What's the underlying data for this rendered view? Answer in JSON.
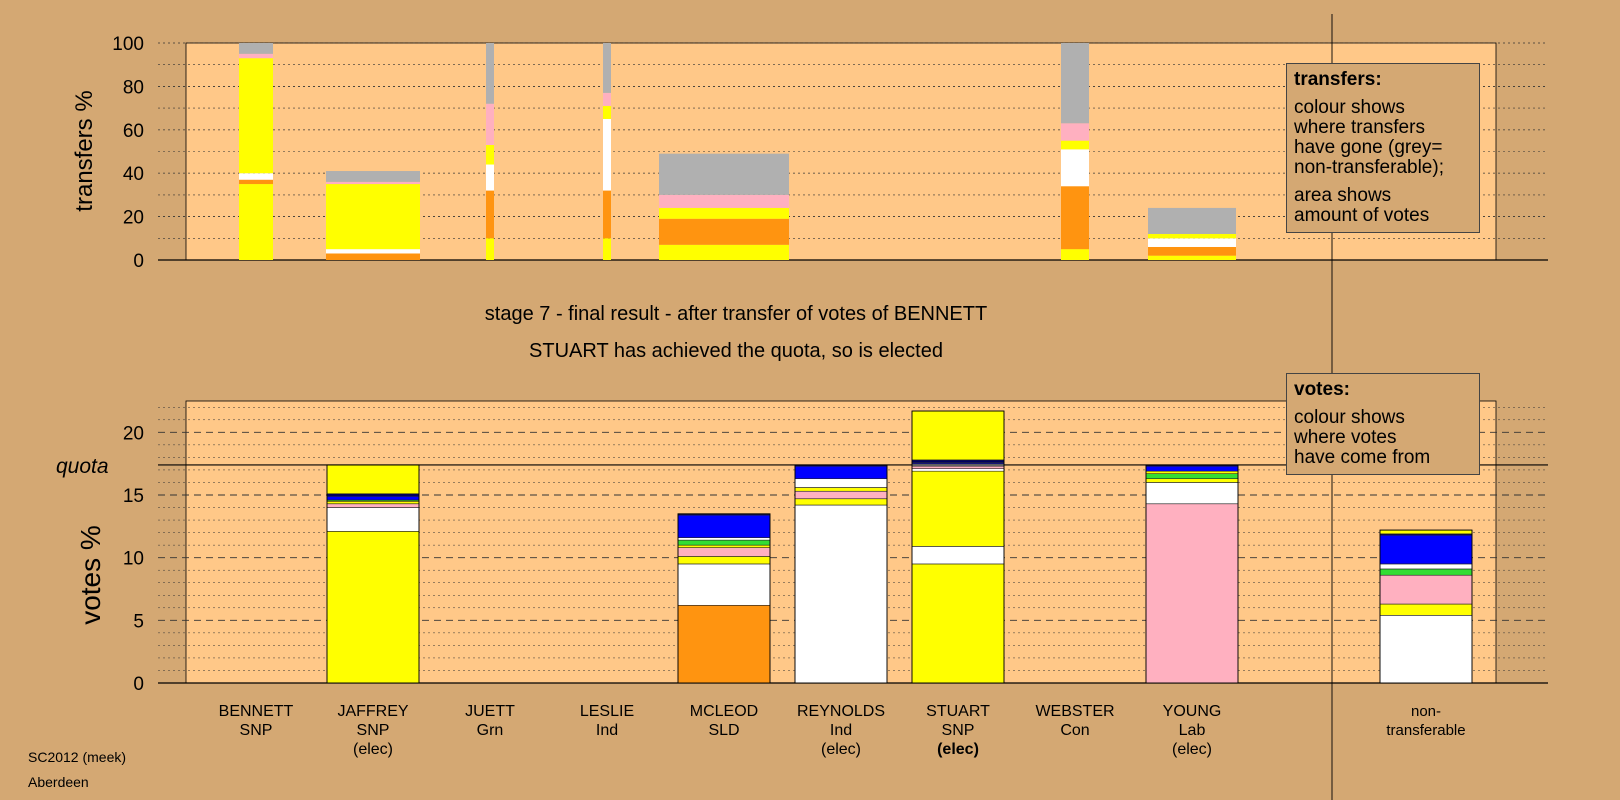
{
  "stage": {
    "line1": "stage 7 - final result - after transfer of votes of BENNETT",
    "line2": "STUART has achieved the quota, so is elected"
  },
  "footer": {
    "line1": "SC2012 (meek)",
    "line2": "Aberdeen"
  },
  "legend_transfers": {
    "title": "transfers:",
    "lines": [
      "colour shows",
      "where transfers",
      "have gone (grey=",
      "non-transferable);"
    ],
    "lines2": [
      "area shows",
      "amount of votes"
    ]
  },
  "legend_votes": {
    "title": "votes:",
    "lines": [
      "colour shows",
      "where votes",
      "have come from"
    ]
  },
  "colors": {
    "yellow": "#ffff00",
    "orange": "#ff9410",
    "white": "#ffffff",
    "pink": "#ffb0c0",
    "grey": "#b0b0b0",
    "blue": "#0000ff",
    "green": "#33dd33",
    "navy": "#000060",
    "panel": "#ffc888",
    "background": "#d4a873"
  },
  "candidates": [
    {
      "name": "BENNETT",
      "party": "SNP",
      "status": ""
    },
    {
      "name": "JAFFREY",
      "party": "SNP",
      "status": "(elec)"
    },
    {
      "name": "JUETT",
      "party": "Grn",
      "status": ""
    },
    {
      "name": "LESLIE",
      "party": "Ind",
      "status": ""
    },
    {
      "name": "MCLEOD",
      "party": "SLD",
      "status": ""
    },
    {
      "name": "REYNOLDS",
      "party": "Ind",
      "status": "(elec)"
    },
    {
      "name": "STUART",
      "party": "SNP",
      "status": "(elec)",
      "status_bold": true
    },
    {
      "name": "WEBSTER",
      "party": "Con",
      "status": ""
    },
    {
      "name": "YOUNG",
      "party": "Lab",
      "status": "(elec)"
    }
  ],
  "nontransferable_label": [
    "non-",
    "transferable"
  ],
  "chart_data": [
    {
      "type": "bar",
      "title": "",
      "ylabel": "transfers %",
      "ylim": [
        0,
        100
      ],
      "yticks": [
        0,
        20,
        40,
        60,
        80,
        100
      ],
      "grid": true,
      "bars": [
        {
          "candidate": "BENNETT",
          "width": "narrow-wide",
          "segments": [
            {
              "color": "yellow",
              "from": 0,
              "to": 35
            },
            {
              "color": "orange",
              "from": 35,
              "to": 37
            },
            {
              "color": "white",
              "from": 37,
              "to": 40
            },
            {
              "color": "yellow",
              "from": 40,
              "to": 93
            },
            {
              "color": "pink",
              "from": 93,
              "to": 95
            },
            {
              "color": "grey",
              "from": 95,
              "to": 100
            }
          ]
        },
        {
          "candidate": "JAFFREY",
          "segments": [
            {
              "color": "orange",
              "from": 0,
              "to": 3
            },
            {
              "color": "white",
              "from": 3,
              "to": 5
            },
            {
              "color": "yellow",
              "from": 5,
              "to": 35
            },
            {
              "color": "pink",
              "from": 35,
              "to": 36
            },
            {
              "color": "grey",
              "from": 36,
              "to": 41
            }
          ]
        },
        {
          "candidate": "JUETT",
          "segments": [
            {
              "color": "yellow",
              "from": 0,
              "to": 10
            },
            {
              "color": "orange",
              "from": 10,
              "to": 32
            },
            {
              "color": "white",
              "from": 32,
              "to": 44
            },
            {
              "color": "yellow",
              "from": 44,
              "to": 53
            },
            {
              "color": "pink",
              "from": 53,
              "to": 72
            },
            {
              "color": "grey",
              "from": 72,
              "to": 100
            }
          ]
        },
        {
          "candidate": "LESLIE",
          "segments": [
            {
              "color": "yellow",
              "from": 0,
              "to": 10
            },
            {
              "color": "orange",
              "from": 10,
              "to": 32
            },
            {
              "color": "white",
              "from": 32,
              "to": 65
            },
            {
              "color": "yellow",
              "from": 65,
              "to": 71
            },
            {
              "color": "pink",
              "from": 71,
              "to": 77
            },
            {
              "color": "grey",
              "from": 77,
              "to": 100
            }
          ]
        },
        {
          "candidate": "MCLEOD",
          "segments": [
            {
              "color": "yellow",
              "from": 0,
              "to": 7
            },
            {
              "color": "orange",
              "from": 7,
              "to": 19
            },
            {
              "color": "yellow",
              "from": 19,
              "to": 24
            },
            {
              "color": "pink",
              "from": 24,
              "to": 30
            },
            {
              "color": "grey",
              "from": 30,
              "to": 49
            }
          ]
        },
        {
          "candidate": "WEBSTER",
          "segments": [
            {
              "color": "yellow",
              "from": 0,
              "to": 5
            },
            {
              "color": "orange",
              "from": 5,
              "to": 34
            },
            {
              "color": "white",
              "from": 34,
              "to": 51
            },
            {
              "color": "yellow",
              "from": 51,
              "to": 55
            },
            {
              "color": "pink",
              "from": 55,
              "to": 63
            },
            {
              "color": "grey",
              "from": 63,
              "to": 100
            }
          ]
        },
        {
          "candidate": "YOUNG",
          "segments": [
            {
              "color": "yellow",
              "from": 0,
              "to": 2
            },
            {
              "color": "orange",
              "from": 2,
              "to": 6
            },
            {
              "color": "white",
              "from": 6,
              "to": 10
            },
            {
              "color": "yellow",
              "from": 10,
              "to": 12
            },
            {
              "color": "grey",
              "from": 12,
              "to": 24
            }
          ]
        }
      ]
    },
    {
      "type": "bar",
      "title": "",
      "ylabel": "votes %",
      "ylim": [
        0,
        22.5
      ],
      "yticks": [
        0,
        5,
        10,
        15,
        20
      ],
      "quota": 17.4,
      "quota_label": "quota",
      "grid": true,
      "bars": [
        {
          "candidate": "JAFFREY",
          "segments": [
            {
              "color": "yellow",
              "from": 0,
              "to": 12.1
            },
            {
              "color": "white",
              "from": 12.1,
              "to": 14.0
            },
            {
              "color": "pink",
              "from": 14.0,
              "to": 14.3
            },
            {
              "color": "yellow",
              "from": 14.3,
              "to": 14.5
            },
            {
              "color": "green",
              "from": 14.5,
              "to": 14.6
            },
            {
              "color": "blue",
              "from": 14.6,
              "to": 14.9
            },
            {
              "color": "navy",
              "from": 14.9,
              "to": 15.1
            },
            {
              "color": "yellow",
              "from": 15.1,
              "to": 17.4
            }
          ]
        },
        {
          "candidate": "MCLEOD",
          "segments": [
            {
              "color": "orange",
              "from": 0,
              "to": 6.2
            },
            {
              "color": "white",
              "from": 6.2,
              "to": 9.5
            },
            {
              "color": "yellow",
              "from": 9.5,
              "to": 10.1
            },
            {
              "color": "pink",
              "from": 10.1,
              "to": 10.8
            },
            {
              "color": "yellow",
              "from": 10.8,
              "to": 11.0
            },
            {
              "color": "green",
              "from": 11.0,
              "to": 11.4
            },
            {
              "color": "white",
              "from": 11.4,
              "to": 11.6
            },
            {
              "color": "blue",
              "from": 11.6,
              "to": 13.4
            },
            {
              "color": "navy",
              "from": 13.4,
              "to": 13.5
            }
          ]
        },
        {
          "candidate": "REYNOLDS",
          "segments": [
            {
              "color": "white",
              "from": 0,
              "to": 14.2
            },
            {
              "color": "yellow",
              "from": 14.2,
              "to": 14.7
            },
            {
              "color": "pink",
              "from": 14.7,
              "to": 15.3
            },
            {
              "color": "yellow",
              "from": 15.3,
              "to": 15.6
            },
            {
              "color": "white",
              "from": 15.6,
              "to": 16.3
            },
            {
              "color": "blue",
              "from": 16.3,
              "to": 17.3
            },
            {
              "color": "navy",
              "from": 17.3,
              "to": 17.4
            }
          ]
        },
        {
          "candidate": "STUART",
          "segments": [
            {
              "color": "yellow",
              "from": 0,
              "to": 9.5
            },
            {
              "color": "white",
              "from": 9.5,
              "to": 10.9
            },
            {
              "color": "yellow",
              "from": 10.9,
              "to": 16.9
            },
            {
              "color": "white",
              "from": 16.9,
              "to": 17.1
            },
            {
              "color": "pink",
              "from": 17.1,
              "to": 17.3
            },
            {
              "color": "white",
              "from": 17.3,
              "to": 17.5
            },
            {
              "color": "blue",
              "from": 17.5,
              "to": 17.6
            },
            {
              "color": "navy",
              "from": 17.6,
              "to": 17.8
            },
            {
              "color": "yellow",
              "from": 17.8,
              "to": 21.7
            }
          ]
        },
        {
          "candidate": "YOUNG",
          "segments": [
            {
              "color": "pink",
              "from": 0,
              "to": 14.3
            },
            {
              "color": "white",
              "from": 14.3,
              "to": 16.0
            },
            {
              "color": "yellow",
              "from": 16.0,
              "to": 16.3
            },
            {
              "color": "green",
              "from": 16.3,
              "to": 16.7
            },
            {
              "color": "yellow",
              "from": 16.7,
              "to": 16.9
            },
            {
              "color": "blue",
              "from": 16.9,
              "to": 17.3
            },
            {
              "color": "navy",
              "from": 17.3,
              "to": 17.4
            }
          ]
        },
        {
          "candidate": "non-transferable",
          "segments": [
            {
              "color": "white",
              "from": 0,
              "to": 5.4
            },
            {
              "color": "yellow",
              "from": 5.4,
              "to": 6.3
            },
            {
              "color": "pink",
              "from": 6.3,
              "to": 8.6
            },
            {
              "color": "green",
              "from": 8.6,
              "to": 9.1
            },
            {
              "color": "white",
              "from": 9.1,
              "to": 9.5
            },
            {
              "color": "blue",
              "from": 9.5,
              "to": 11.8
            },
            {
              "color": "navy",
              "from": 11.8,
              "to": 11.9
            },
            {
              "color": "yellow",
              "from": 11.9,
              "to": 12.2
            }
          ]
        }
      ]
    }
  ]
}
